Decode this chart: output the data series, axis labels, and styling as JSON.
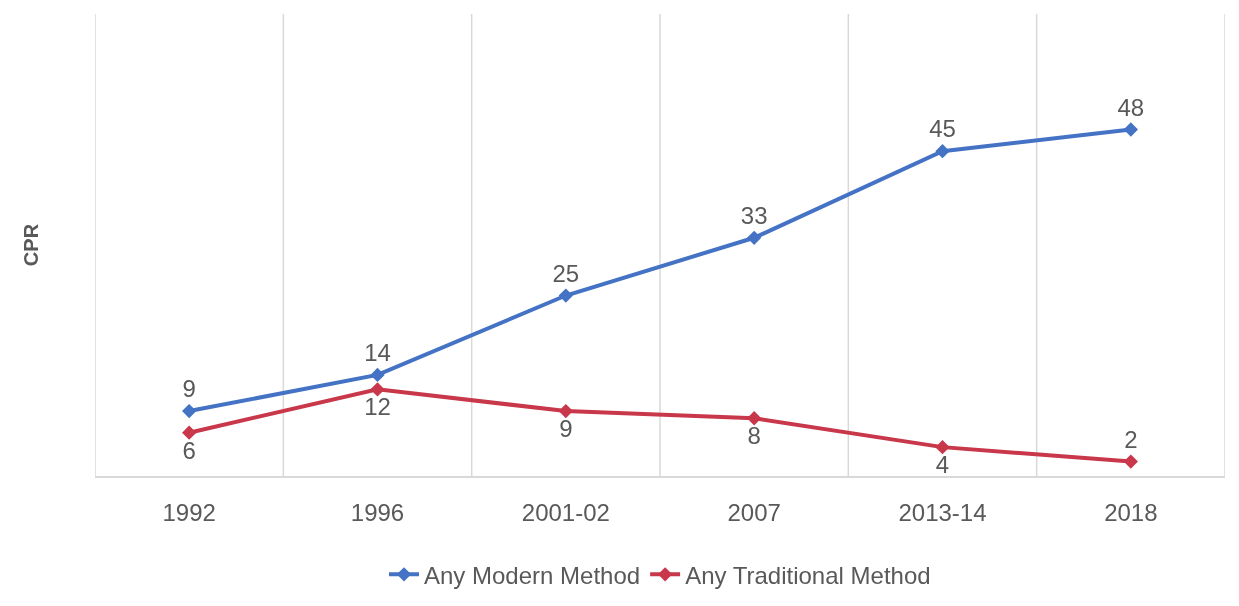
{
  "chart_data": {
    "type": "line",
    "ylabel": "CPR",
    "categories": [
      "1992",
      "1996",
      "2001-02",
      "2007",
      "2013-14",
      "2018"
    ],
    "series": [
      {
        "name": "Any Modern Method",
        "color": "#4472c4",
        "values": [
          9,
          14,
          25,
          33,
          45,
          48
        ]
      },
      {
        "name": "Any Traditional Method",
        "color": "#c8374a",
        "values": [
          6,
          12,
          9,
          8,
          4,
          2
        ]
      }
    ],
    "ylim": [
      0,
      64
    ],
    "data_labels": true,
    "tick_labels": "x",
    "grid": "x",
    "legend": "bottom",
    "marker": "diamond",
    "line_style": "solid"
  }
}
